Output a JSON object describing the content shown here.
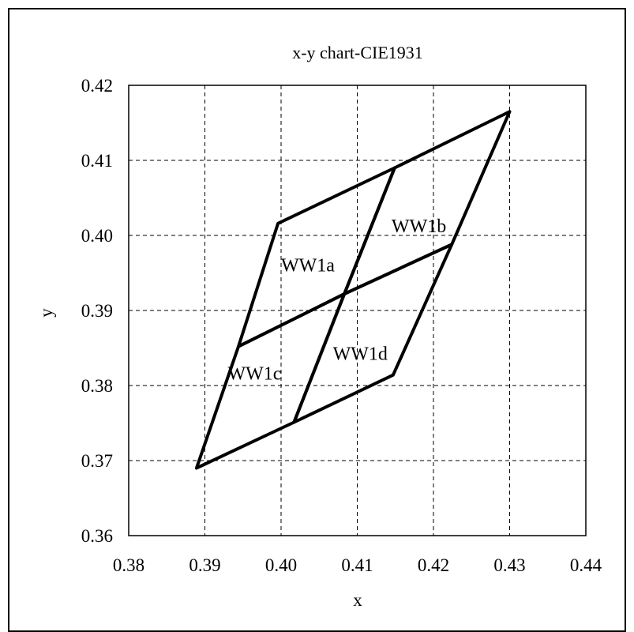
{
  "chart_data": {
    "type": "line",
    "title": "x-y chart-CIE1931",
    "xlabel": "x",
    "ylabel": "y",
    "xlim": [
      0.38,
      0.44
    ],
    "ylim": [
      0.36,
      0.42
    ],
    "xticks": [
      "0.38",
      "0.39",
      "0.40",
      "0.41",
      "0.42",
      "0.43",
      "0.44"
    ],
    "yticks": [
      "0.36",
      "0.37",
      "0.38",
      "0.39",
      "0.40",
      "0.41",
      "0.42"
    ],
    "grid": true,
    "regions": [
      {
        "name": "WW1a",
        "label_at": [
          0.4,
          0.3952
        ],
        "vertices": [
          [
            0.3944,
            0.3852
          ],
          [
            0.3996,
            0.4016
          ],
          [
            0.4149,
            0.409
          ],
          [
            0.4083,
            0.3922
          ]
        ]
      },
      {
        "name": "WW1b",
        "label_at": [
          0.4145,
          0.4004
        ],
        "vertices": [
          [
            0.4083,
            0.3922
          ],
          [
            0.4149,
            0.409
          ],
          [
            0.43,
            0.4165
          ],
          [
            0.4224,
            0.3988
          ]
        ]
      },
      {
        "name": "WW1c",
        "label_at": [
          0.393,
          0.3808
        ],
        "vertices": [
          [
            0.3889,
            0.369
          ],
          [
            0.3944,
            0.3852
          ],
          [
            0.4083,
            0.3922
          ],
          [
            0.4017,
            0.3751
          ]
        ]
      },
      {
        "name": "WW1d",
        "label_at": [
          0.4068,
          0.3834
        ],
        "vertices": [
          [
            0.4017,
            0.3751
          ],
          [
            0.4083,
            0.3922
          ],
          [
            0.4224,
            0.3988
          ],
          [
            0.4147,
            0.3814
          ]
        ]
      }
    ]
  }
}
